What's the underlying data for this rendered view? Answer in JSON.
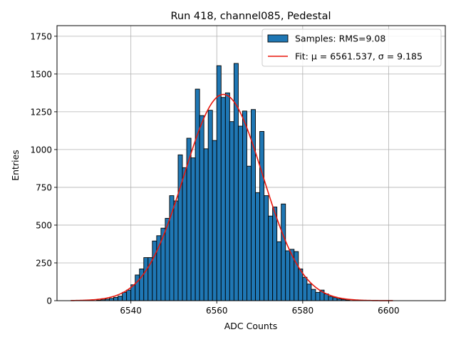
{
  "chart_data": {
    "type": "bar",
    "title": "Run 418, channel085, Pedestal",
    "xlabel": "ADC Counts",
    "ylabel": "Entries",
    "xlim": [
      6522.8,
      6613.2
    ],
    "ylim": [
      0,
      1820
    ],
    "grid": true,
    "xticks": [
      6540,
      6560,
      6580,
      6600
    ],
    "yticks": [
      0,
      250,
      500,
      750,
      1000,
      1250,
      1500,
      1750
    ],
    "bin_width": 1,
    "bins": {
      "x_left": [
        6532,
        6533,
        6534,
        6535,
        6536,
        6537,
        6538,
        6539,
        6540,
        6541,
        6542,
        6543,
        6544,
        6545,
        6546,
        6547,
        6548,
        6549,
        6550,
        6551,
        6552,
        6553,
        6554,
        6555,
        6556,
        6557,
        6558,
        6559,
        6560,
        6561,
        6562,
        6563,
        6564,
        6565,
        6566,
        6567,
        6568,
        6569,
        6570,
        6571,
        6572,
        6573,
        6574,
        6575,
        6576,
        6577,
        6578,
        6579,
        6580,
        6581,
        6582,
        6583,
        6584,
        6585,
        6586,
        6587,
        6588,
        6589,
        6590
      ],
      "counts": [
        3,
        6,
        10,
        15,
        22,
        30,
        55,
        70,
        105,
        170,
        210,
        285,
        285,
        395,
        430,
        480,
        545,
        695,
        660,
        965,
        880,
        1075,
        945,
        1400,
        1225,
        1005,
        1260,
        1060,
        1555,
        1345,
        1375,
        1185,
        1570,
        1155,
        1255,
        890,
        1265,
        715,
        1120,
        695,
        560,
        620,
        390,
        640,
        330,
        340,
        325,
        210,
        155,
        110,
        75,
        55,
        70,
        45,
        28,
        20,
        12,
        8,
        4
      ]
    },
    "fit": {
      "mu": 6561.537,
      "sigma": 9.185,
      "amplitude": 1365,
      "x_range": [
        6526,
        6601
      ],
      "color": "#e8160c"
    },
    "legend": {
      "position": "top-right",
      "entries": [
        {
          "label": "Samples: RMS=9.08",
          "color": "#1f77b4",
          "kind": "patch"
        },
        {
          "label": "Fit: μ = 6561.537, σ = 9.185",
          "color": "#e8160c",
          "kind": "line"
        }
      ]
    },
    "bar_color": "#1f77b4",
    "edge_color": "#000000"
  }
}
